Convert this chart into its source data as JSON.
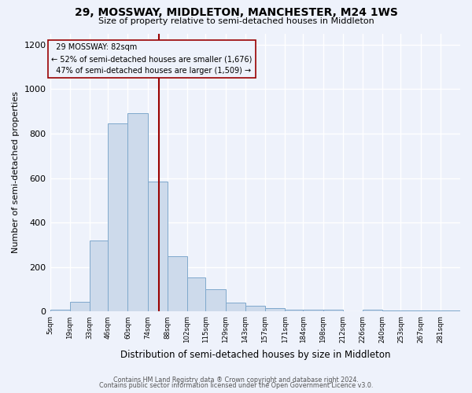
{
  "title_line1": "29, MOSSWAY, MIDDLETON, MANCHESTER, M24 1WS",
  "title_line2": "Size of property relative to semi-detached houses in Middleton",
  "xlabel": "Distribution of semi-detached houses by size in Middleton",
  "ylabel": "Number of semi-detached properties",
  "footnote1": "Contains HM Land Registry data ® Crown copyright and database right 2024.",
  "footnote2": "Contains public sector information licensed under the Open Government Licence v3.0.",
  "property_label": "29 MOSSWAY: 82sqm",
  "pct_smaller_arrow": "← 52% of semi-detached houses are smaller (1,676)",
  "pct_larger": "47% of semi-detached houses are larger (1,509) →",
  "property_value": 82,
  "bar_color": "#cddaeb",
  "bar_edge_color": "#7fa8cc",
  "marker_color": "#990000",
  "annotation_box_edge": "#990000",
  "background_color": "#eef2fb",
  "grid_color": "#ffffff",
  "bin_edges": [
    5,
    19,
    33,
    46,
    60,
    74,
    88,
    102,
    115,
    129,
    143,
    157,
    171,
    184,
    198,
    212,
    226,
    240,
    253,
    267,
    281,
    295
  ],
  "bin_labels": [
    "5sqm",
    "19sqm",
    "33sqm",
    "46sqm",
    "60sqm",
    "74sqm",
    "88sqm",
    "102sqm",
    "115sqm",
    "129sqm",
    "143sqm",
    "157sqm",
    "171sqm",
    "184sqm",
    "198sqm",
    "212sqm",
    "226sqm",
    "240sqm",
    "253sqm",
    "267sqm",
    "281sqm"
  ],
  "counts": [
    10,
    45,
    320,
    845,
    890,
    585,
    250,
    155,
    100,
    40,
    25,
    15,
    10,
    10,
    8,
    0,
    8,
    5,
    4,
    4,
    5
  ],
  "ylim": [
    0,
    1250
  ],
  "yticks": [
    0,
    200,
    400,
    600,
    800,
    1000,
    1200
  ]
}
